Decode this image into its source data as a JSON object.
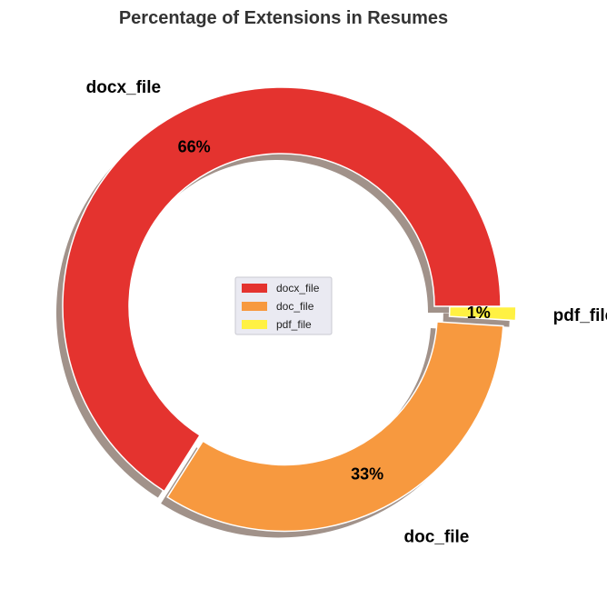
{
  "chart_data": {
    "type": "pie",
    "variant": "donut",
    "title": "Percentage of Extensions in Resumes",
    "categories": [
      "docx_file",
      "doc_file",
      "pdf_file"
    ],
    "values": [
      66,
      33,
      1
    ],
    "value_labels": [
      "66%",
      "33%",
      "1%"
    ],
    "colors": [
      "#e4332f",
      "#f7993f",
      "#fff143"
    ],
    "legend": {
      "entries": [
        "docx_file",
        "doc_file",
        "pdf_file"
      ],
      "placement": "center"
    },
    "shadow": true,
    "explode": [
      0,
      0.03,
      0.07
    ]
  }
}
